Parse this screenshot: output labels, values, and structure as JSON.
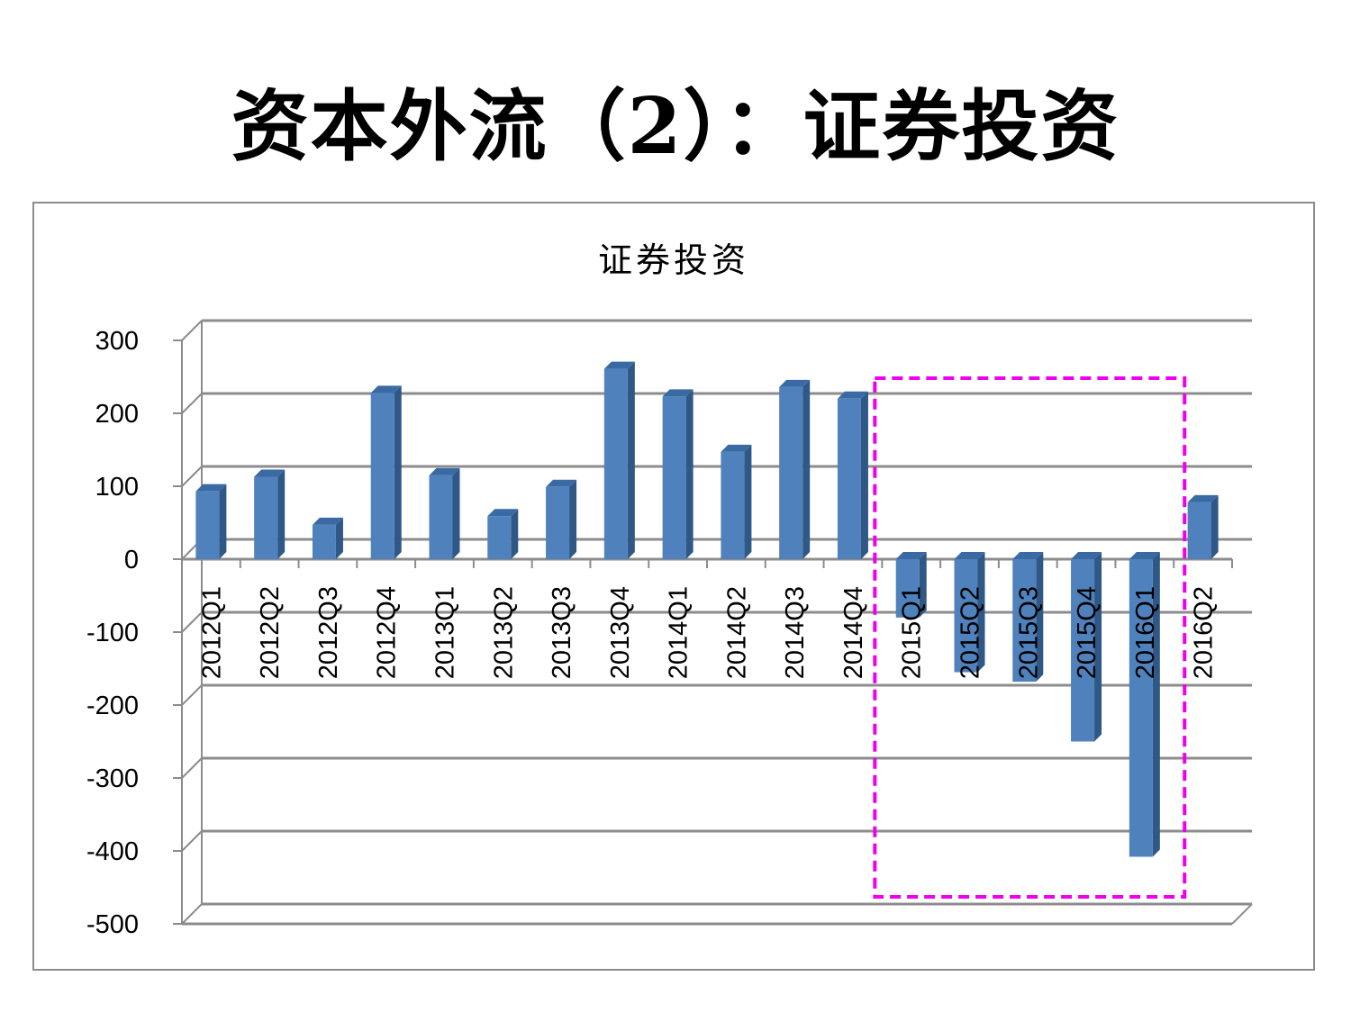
{
  "page": {
    "title": "资本外流（2）：证券投资"
  },
  "chart_data": {
    "type": "bar",
    "title": "证券投资",
    "xlabel": "",
    "ylabel": "",
    "ylim": [
      -500,
      300
    ],
    "yticks": [
      300,
      200,
      100,
      0,
      -100,
      -200,
      -300,
      -400,
      -500
    ],
    "grid": true,
    "categories": [
      "2012Q1",
      "2012Q2",
      "2012Q3",
      "2012Q4",
      "2013Q1",
      "2013Q2",
      "2013Q3",
      "2013Q4",
      "2014Q1",
      "2014Q2",
      "2014Q3",
      "2014Q4",
      "2015Q1",
      "2015Q2",
      "2015Q3",
      "2015Q4",
      "2016Q1",
      "2016Q2"
    ],
    "values": [
      93,
      113,
      47,
      228,
      115,
      59,
      99,
      261,
      223,
      147,
      236,
      220,
      -80,
      -155,
      -168,
      -250,
      -408,
      78
    ],
    "bar_color": "#4f81bd",
    "bar_side_color": "#2f5887",
    "bar_top_color": "#3a6aa3",
    "grid_color": "#8c8c8c",
    "highlight": {
      "from_category": "2015Q1",
      "to_category": "2016Q1",
      "color": "#ee00ee",
      "style": "dashed"
    }
  }
}
